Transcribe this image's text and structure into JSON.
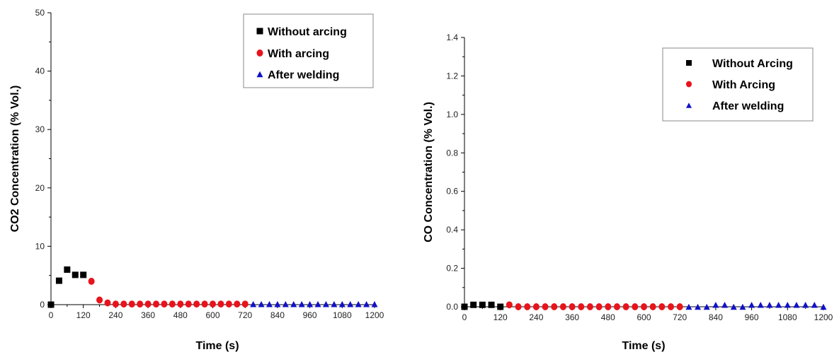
{
  "chart_data": [
    {
      "type": "scatter",
      "xlabel": "Time (s)",
      "ylabel": "CO2 Concentration (% Vol.)",
      "xlim": [
        0,
        1200
      ],
      "ylim": [
        0,
        50
      ],
      "x_ticks": [
        0,
        120,
        240,
        360,
        480,
        600,
        720,
        840,
        960,
        1080,
        1200
      ],
      "y_ticks": [
        0,
        10,
        20,
        30,
        40,
        50
      ],
      "y_tick_decimals": 0,
      "grid": false,
      "legend_position": "top-right",
      "series": [
        {
          "name": "Without arcing",
          "marker": "square",
          "color": "#000000",
          "points": [
            [
              0,
              0
            ],
            [
              30,
              4.1
            ],
            [
              60,
              6.0
            ],
            [
              90,
              5.1
            ],
            [
              120,
              5.1
            ]
          ]
        },
        {
          "name": "With arcing",
          "marker": "circle",
          "color": "#e8131b",
          "points": [
            [
              150,
              4.0
            ],
            [
              180,
              0.8
            ],
            [
              210,
              0.3
            ],
            [
              240,
              0.1
            ],
            [
              270,
              0.1
            ],
            [
              300,
              0.1
            ],
            [
              330,
              0.1
            ],
            [
              360,
              0.1
            ],
            [
              390,
              0.1
            ],
            [
              420,
              0.1
            ],
            [
              450,
              0.1
            ],
            [
              480,
              0.1
            ],
            [
              510,
              0.1
            ],
            [
              540,
              0.1
            ],
            [
              570,
              0.1
            ],
            [
              600,
              0.1
            ],
            [
              630,
              0.1
            ],
            [
              660,
              0.1
            ],
            [
              690,
              0.1
            ],
            [
              720,
              0.1
            ]
          ]
        },
        {
          "name": "After welding",
          "marker": "triangle",
          "color": "#1111c8",
          "points": [
            [
              750,
              0.1
            ],
            [
              780,
              0.1
            ],
            [
              810,
              0.1
            ],
            [
              840,
              0.1
            ],
            [
              870,
              0.1
            ],
            [
              900,
              0.1
            ],
            [
              930,
              0.1
            ],
            [
              960,
              0.1
            ],
            [
              990,
              0.1
            ],
            [
              1020,
              0.1
            ],
            [
              1050,
              0.1
            ],
            [
              1080,
              0.1
            ],
            [
              1110,
              0.1
            ],
            [
              1140,
              0.1
            ],
            [
              1170,
              0.1
            ],
            [
              1200,
              0.1
            ]
          ]
        }
      ]
    },
    {
      "type": "scatter",
      "xlabel": "Time (s)",
      "ylabel": "CO Concentration (% Vol.)",
      "xlim": [
        0,
        1200
      ],
      "ylim": [
        0,
        1.4
      ],
      "x_ticks": [
        0,
        120,
        240,
        360,
        480,
        600,
        720,
        840,
        960,
        1080,
        1200
      ],
      "y_ticks": [
        0,
        0.2,
        0.4,
        0.6,
        0.8,
        1.0,
        1.2,
        1.4
      ],
      "y_tick_decimals": 1,
      "grid": false,
      "legend_position": "top-right",
      "series": [
        {
          "name": "Without Arcing",
          "marker": "square",
          "color": "#000000",
          "points": [
            [
              0,
              0.0
            ],
            [
              30,
              0.01
            ],
            [
              60,
              0.01
            ],
            [
              90,
              0.01
            ],
            [
              120,
              0.0
            ]
          ]
        },
        {
          "name": "With Arcing",
          "marker": "circle",
          "color": "#e8131b",
          "points": [
            [
              150,
              0.01
            ],
            [
              180,
              0.0
            ],
            [
              210,
              0.0
            ],
            [
              240,
              0.0
            ],
            [
              270,
              0.0
            ],
            [
              300,
              0.0
            ],
            [
              330,
              0.0
            ],
            [
              360,
              0.0
            ],
            [
              390,
              0.0
            ],
            [
              420,
              0.0
            ],
            [
              450,
              0.0
            ],
            [
              480,
              0.0
            ],
            [
              510,
              0.0
            ],
            [
              540,
              0.0
            ],
            [
              570,
              0.0
            ],
            [
              600,
              0.0
            ],
            [
              630,
              0.0
            ],
            [
              660,
              0.0
            ],
            [
              690,
              0.0
            ],
            [
              720,
              0.0
            ]
          ]
        },
        {
          "name": "After welding",
          "marker": "triangle",
          "color": "#1111c8",
          "points": [
            [
              750,
              0.0
            ],
            [
              780,
              0.0
            ],
            [
              810,
              0.0
            ],
            [
              840,
              0.01
            ],
            [
              870,
              0.01
            ],
            [
              900,
              0.0
            ],
            [
              930,
              0.0
            ],
            [
              960,
              0.01
            ],
            [
              990,
              0.01
            ],
            [
              1020,
              0.01
            ],
            [
              1050,
              0.01
            ],
            [
              1080,
              0.01
            ],
            [
              1110,
              0.01
            ],
            [
              1140,
              0.01
            ],
            [
              1170,
              0.01
            ],
            [
              1200,
              0.0
            ]
          ]
        }
      ]
    }
  ]
}
